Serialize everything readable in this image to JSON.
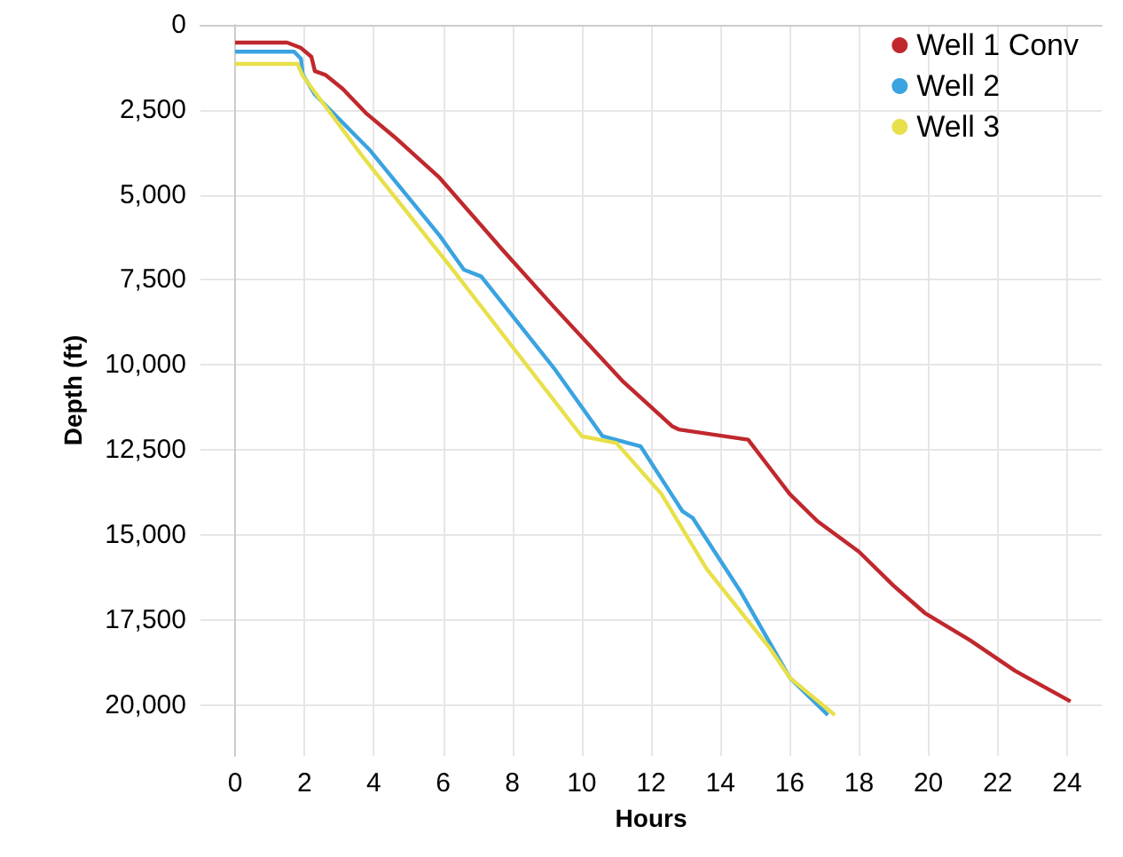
{
  "chart_data": {
    "type": "line",
    "xlabel": "Hours",
    "ylabel": "Depth (ft)",
    "xlim": [
      -1,
      25
    ],
    "xticks": [
      0,
      2,
      4,
      6,
      8,
      10,
      12,
      14,
      16,
      18,
      20,
      22,
      24
    ],
    "ylim": [
      21500,
      0
    ],
    "yticks": [
      0,
      {
        "value": 2500,
        "label": "2,500"
      },
      {
        "value": 5000,
        "label": "5,000"
      },
      {
        "value": 7500,
        "label": "7,500"
      },
      {
        "value": 10000,
        "label": "10,000"
      },
      {
        "value": 12500,
        "label": "12,500"
      },
      {
        "value": 15000,
        "label": "15,000"
      },
      {
        "value": 17500,
        "label": "17,500"
      },
      {
        "value": 20000,
        "label": "20,000"
      }
    ],
    "grid": true,
    "legend": "top right",
    "marker": "none",
    "line_style": "solid",
    "series": [
      {
        "name": "Well 1 Conv",
        "color": "#c0282d",
        "x": [
          0,
          1.5,
          1.9,
          2.2,
          2.3,
          2.6,
          3.1,
          3.8,
          4.6,
          5.9,
          7.7,
          9.2,
          11.2,
          12.6,
          12.8,
          14.8,
          15.4,
          16,
          16.8,
          18,
          19,
          19.9,
          21.2,
          22.5,
          24.1
        ],
        "values": [
          520,
          520,
          680,
          940,
          1360,
          1470,
          1880,
          2620,
          3300,
          4500,
          6600,
          8300,
          10500,
          11800,
          11900,
          12200,
          13000,
          13800,
          14600,
          15500,
          16500,
          17300,
          18100,
          19000,
          19900
        ]
      },
      {
        "name": "Well 2",
        "color": "#3aa3e0",
        "x": [
          0,
          1.7,
          1.9,
          1.95,
          2.3,
          3.9,
          5.9,
          6.6,
          7.1,
          9.2,
          10.6,
          11.7,
          12.9,
          13.2,
          14.6,
          16,
          17.1
        ],
        "values": [
          790,
          790,
          1000,
          1460,
          2050,
          3700,
          6200,
          7200,
          7400,
          10100,
          12100,
          12400,
          14300,
          14500,
          16700,
          19200,
          20300
        ]
      },
      {
        "name": "Well 3",
        "color": "#e8e04a",
        "x": [
          0,
          1.8,
          1.95,
          3.7,
          6.2,
          10,
          11,
          12.3,
          13.6,
          15.4,
          16,
          17.3
        ],
        "values": [
          1150,
          1150,
          1500,
          3900,
          7100,
          12100,
          12300,
          13800,
          16000,
          18300,
          19200,
          20300
        ]
      }
    ]
  }
}
